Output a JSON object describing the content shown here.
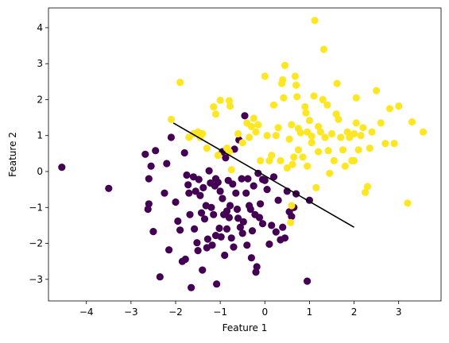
{
  "chart_data": {
    "type": "scatter",
    "xlabel": "Feature 1",
    "ylabel": "Feature 2",
    "xlim": [
      -4.85,
      3.95
    ],
    "ylim": [
      -3.6,
      4.55
    ],
    "x_ticks": [
      -4,
      -3,
      -2,
      -1,
      0,
      1,
      2,
      3
    ],
    "y_ticks": [
      -3,
      -2,
      -1,
      0,
      1,
      2,
      3,
      4
    ],
    "x_tick_labels": [
      "−4",
      "−3",
      "−2",
      "−1",
      "0",
      "1",
      "2",
      "3"
    ],
    "y_tick_labels": [
      "−3",
      "−2",
      "−1",
      "0",
      "1",
      "2",
      "3",
      "4"
    ],
    "grid": false,
    "colors": {
      "class_0": "#440154",
      "class_1": "#fde725",
      "boundary": "#000000"
    },
    "series": [
      {
        "class": 0,
        "color": "#440154",
        "points": [
          [
            -4.55,
            0.12
          ],
          [
            -3.5,
            -0.47
          ],
          [
            -2.68,
            0.48
          ],
          [
            -2.6,
            -0.2
          ],
          [
            -2.62,
            -1.05
          ],
          [
            -2.6,
            -0.9
          ],
          [
            -2.55,
            0.15
          ],
          [
            -2.5,
            -1.67
          ],
          [
            -2.45,
            0.58
          ],
          [
            -2.35,
            -2.93
          ],
          [
            -2.25,
            -0.6
          ],
          [
            -2.2,
            0.22
          ],
          [
            -2.15,
            -2.18
          ],
          [
            -2.1,
            0.95
          ],
          [
            -2.0,
            -0.85
          ],
          [
            -1.95,
            -1.38
          ],
          [
            -1.9,
            -1.63
          ],
          [
            -1.85,
            -2.5
          ],
          [
            -1.8,
            0.52
          ],
          [
            -1.78,
            -2.44
          ],
          [
            -1.75,
            -0.1
          ],
          [
            -1.72,
            -0.37
          ],
          [
            -1.7,
            -0.6
          ],
          [
            -1.68,
            -1.2
          ],
          [
            -1.65,
            -3.23
          ],
          [
            -1.6,
            -0.15
          ],
          [
            -1.58,
            -1.6
          ],
          [
            -1.55,
            -0.55
          ],
          [
            -1.52,
            -1.98
          ],
          [
            -1.5,
            -2.2
          ],
          [
            -1.48,
            -0.22
          ],
          [
            -1.45,
            -0.67
          ],
          [
            -1.42,
            -1.15
          ],
          [
            -1.4,
            -2.74
          ],
          [
            -1.38,
            -0.45
          ],
          [
            -1.35,
            -1.32
          ],
          [
            -1.32,
            -0.95
          ],
          [
            -1.3,
            -2.12
          ],
          [
            -1.28,
            -1.88
          ],
          [
            -1.25,
            0.02
          ],
          [
            -1.22,
            -0.32
          ],
          [
            -1.2,
            -1.0
          ],
          [
            -1.18,
            -2.05
          ],
          [
            -1.15,
            -1.2
          ],
          [
            -1.12,
            -0.4
          ],
          [
            -1.1,
            -1.78
          ],
          [
            -1.08,
            -3.13
          ],
          [
            -1.05,
            -0.3
          ],
          [
            -1.02,
            -1.58
          ],
          [
            -1.0,
            -0.55
          ],
          [
            -0.98,
            -1.82
          ],
          [
            -0.95,
            -0.75
          ],
          [
            -0.92,
            -1.2
          ],
          [
            -0.9,
            -2.33
          ],
          [
            -0.88,
            0.38
          ],
          [
            -0.85,
            -1.6
          ],
          [
            -0.82,
            -0.25
          ],
          [
            -0.8,
            -1.28
          ],
          [
            -0.78,
            -0.95
          ],
          [
            -0.75,
            -1.85
          ],
          [
            -0.72,
            -0.35
          ],
          [
            -0.7,
            -2.1
          ],
          [
            -0.68,
            0.62
          ],
          [
            -0.65,
            -0.6
          ],
          [
            -0.62,
            -1.05
          ],
          [
            -0.6,
            -1.3
          ],
          [
            -0.58,
            0.88
          ],
          [
            -0.55,
            -1.55
          ],
          [
            -0.52,
            -0.2
          ],
          [
            -0.5,
            -1.72
          ],
          [
            -0.48,
            -1.4
          ],
          [
            -0.45,
            1.55
          ],
          [
            -0.42,
            -0.6
          ],
          [
            -0.4,
            -2.05
          ],
          [
            -0.38,
            -0.2
          ],
          [
            -0.35,
            -0.95
          ],
          [
            -0.32,
            -1.05
          ],
          [
            -0.3,
            -2.4
          ],
          [
            -0.28,
            -1.65
          ],
          [
            -0.25,
            -0.4
          ],
          [
            -0.22,
            -1.2
          ],
          [
            -0.2,
            -2.8
          ],
          [
            -0.18,
            -2.65
          ],
          [
            -0.15,
            -0.05
          ],
          [
            -0.12,
            -1.28
          ],
          [
            -0.1,
            -0.9
          ],
          [
            -0.05,
            -1.45
          ],
          [
            0.0,
            -0.25
          ],
          [
            0.05,
            -0.5
          ],
          [
            0.1,
            -2.02
          ],
          [
            0.15,
            -1.5
          ],
          [
            0.2,
            -0.15
          ],
          [
            0.25,
            -1.68
          ],
          [
            0.3,
            -0.8
          ],
          [
            0.35,
            -1.9
          ],
          [
            0.4,
            -1.55
          ],
          [
            0.45,
            -1.85
          ],
          [
            0.5,
            -0.55
          ],
          [
            0.55,
            -1.12
          ],
          [
            0.6,
            -1.25
          ],
          [
            0.65,
            -1.0
          ],
          [
            0.7,
            -0.62
          ],
          [
            0.95,
            -3.05
          ],
          [
            1.0,
            -0.8
          ],
          [
            -0.95,
            0.55
          ],
          [
            -1.1,
            -0.2
          ],
          [
            -0.05,
            -0.22
          ],
          [
            -0.85,
            -1.1
          ]
        ]
      },
      {
        "class": 1,
        "color": "#fde725",
        "points": [
          [
            -1.9,
            2.48
          ],
          [
            -2.1,
            1.45
          ],
          [
            -1.7,
            0.95
          ],
          [
            -1.6,
            1.05
          ],
          [
            -1.5,
            1.1
          ],
          [
            -1.45,
            0.95
          ],
          [
            -1.4,
            1.05
          ],
          [
            -1.3,
            0.65
          ],
          [
            -1.15,
            1.8
          ],
          [
            -1.1,
            1.6
          ],
          [
            -1.05,
            0.45
          ],
          [
            -1.0,
            1.98
          ],
          [
            -0.85,
            0.65
          ],
          [
            -0.8,
            0.55
          ],
          [
            -0.75,
            0.05
          ],
          [
            -0.8,
            1.97
          ],
          [
            -0.78,
            1.82
          ],
          [
            -0.6,
            1.05
          ],
          [
            -0.5,
            0.8
          ],
          [
            -0.4,
            1.35
          ],
          [
            -0.35,
            0.95
          ],
          [
            -0.3,
            1.25
          ],
          [
            -0.25,
            1.48
          ],
          [
            -0.2,
            1.1
          ],
          [
            -0.15,
            1.3
          ],
          [
            -0.1,
            0.3
          ],
          [
            0.0,
            2.65
          ],
          [
            0.05,
            1.0
          ],
          [
            0.1,
            0.3
          ],
          [
            0.15,
            0.45
          ],
          [
            0.2,
            1.85
          ],
          [
            0.25,
            1.0
          ],
          [
            0.3,
            1.22
          ],
          [
            0.35,
            0.3
          ],
          [
            0.38,
            2.45
          ],
          [
            0.4,
            2.55
          ],
          [
            0.42,
            2.05
          ],
          [
            0.45,
            2.95
          ],
          [
            0.5,
            0.1
          ],
          [
            0.55,
            0.9
          ],
          [
            0.58,
            -1.42
          ],
          [
            0.6,
            1.3
          ],
          [
            0.62,
            0.2
          ],
          [
            0.65,
            0.4
          ],
          [
            0.68,
            2.65
          ],
          [
            0.7,
            2.4
          ],
          [
            0.72,
            2.08
          ],
          [
            0.75,
            0.6
          ],
          [
            0.8,
            1.08
          ],
          [
            0.85,
            0.4
          ],
          [
            0.9,
            1.8
          ],
          [
            0.92,
            1.63
          ],
          [
            0.95,
            1.1
          ],
          [
            1.0,
            1.42
          ],
          [
            1.05,
            0.98
          ],
          [
            1.1,
            2.1
          ],
          [
            1.12,
            4.2
          ],
          [
            1.15,
            -0.45
          ],
          [
            1.2,
            0.55
          ],
          [
            1.25,
            1.1
          ],
          [
            1.3,
            2.0
          ],
          [
            1.32,
            3.4
          ],
          [
            1.35,
            0.95
          ],
          [
            1.4,
            1.85
          ],
          [
            1.42,
            0.58
          ],
          [
            1.45,
            -0.05
          ],
          [
            1.5,
            1.05
          ],
          [
            1.55,
            0.3
          ],
          [
            1.6,
            1.6
          ],
          [
            1.62,
            2.45
          ],
          [
            1.65,
            1.45
          ],
          [
            1.7,
            0.95
          ],
          [
            1.75,
            0.6
          ],
          [
            1.8,
            0.15
          ],
          [
            1.85,
            1.1
          ],
          [
            1.9,
            0.95
          ],
          [
            1.95,
            0.3
          ],
          [
            2.0,
            0.3
          ],
          [
            2.05,
            2.05
          ],
          [
            2.1,
            0.6
          ],
          [
            2.15,
            1.0
          ],
          [
            2.2,
            1.22
          ],
          [
            2.25,
            -0.58
          ],
          [
            2.3,
            -0.42
          ],
          [
            2.35,
            0.65
          ],
          [
            2.4,
            1.1
          ],
          [
            2.5,
            2.25
          ],
          [
            2.6,
            1.35
          ],
          [
            2.7,
            0.78
          ],
          [
            2.8,
            1.75
          ],
          [
            2.9,
            0.78
          ],
          [
            3.0,
            1.82
          ],
          [
            3.2,
            -0.88
          ],
          [
            3.3,
            1.38
          ],
          [
            3.55,
            1.1
          ],
          [
            1.05,
            0.8
          ],
          [
            0.75,
            1.2
          ],
          [
            1.2,
            1.25
          ],
          [
            2.05,
            1.35
          ],
          [
            0.95,
            0.15
          ],
          [
            2.0,
            1.05
          ],
          [
            0.6,
            -0.95
          ]
        ]
      }
    ],
    "decision_boundary": {
      "x": [
        -2.05,
        2.0
      ],
      "y": [
        1.35,
        -1.55
      ]
    }
  }
}
